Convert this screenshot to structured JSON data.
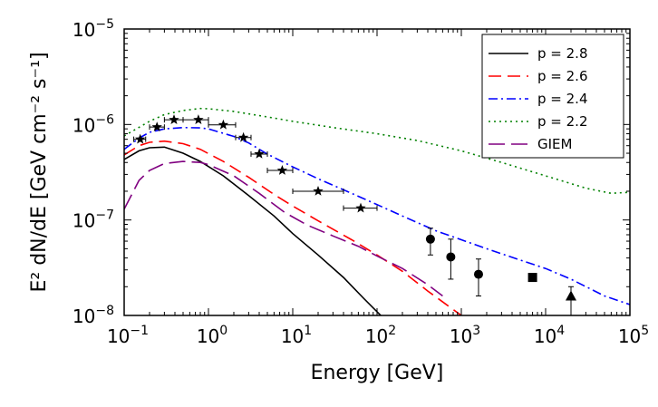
{
  "chart_data": {
    "type": "line",
    "title": "",
    "xlabel": "Energy [GeV]",
    "ylabel_text": "E² dN/dE [GeV cm⁻² s⁻¹]",
    "xscale": "log",
    "yscale": "log",
    "xlim": [
      0.1,
      100000
    ],
    "ylim": [
      1e-08,
      1e-05
    ],
    "x_ticks": [
      {
        "value": 0.1,
        "base": "10",
        "exp": "−1"
      },
      {
        "value": 1,
        "base": "10",
        "exp": "0"
      },
      {
        "value": 10,
        "base": "10",
        "exp": "1"
      },
      {
        "value": 100,
        "base": "10",
        "exp": "2"
      },
      {
        "value": 1000,
        "base": "10",
        "exp": "3"
      },
      {
        "value": 10000,
        "base": "10",
        "exp": "4"
      },
      {
        "value": 100000,
        "base": "10",
        "exp": "5"
      }
    ],
    "y_ticks": [
      {
        "value": 1e-08,
        "base": "10",
        "exp": "−8"
      },
      {
        "value": 1e-07,
        "base": "10",
        "exp": "−7"
      },
      {
        "value": 1e-06,
        "base": "10",
        "exp": "−6"
      },
      {
        "value": 1e-05,
        "base": "10",
        "exp": "−5"
      }
    ],
    "legend_position": "top-right",
    "series": [
      {
        "name": "p = 2.8",
        "color": "#000000",
        "style": "solid",
        "points": [
          [
            0.1,
            4.3e-07
          ],
          [
            0.15,
            5.3e-07
          ],
          [
            0.2,
            5.7e-07
          ],
          [
            0.3,
            5.8e-07
          ],
          [
            0.5,
            5e-07
          ],
          [
            0.8,
            4.1e-07
          ],
          [
            1.5,
            2.9e-07
          ],
          [
            3,
            1.8e-07
          ],
          [
            6,
            1.1e-07
          ],
          [
            10,
            7.2e-08
          ],
          [
            20,
            4.3e-08
          ],
          [
            40,
            2.5e-08
          ],
          [
            70,
            1.5e-08
          ],
          [
            120,
            9.3e-09
          ]
        ]
      },
      {
        "name": "p = 2.6",
        "color": "#ff0000",
        "style": "dashed",
        "points": [
          [
            0.1,
            4.8e-07
          ],
          [
            0.15,
            6e-07
          ],
          [
            0.2,
            6.5e-07
          ],
          [
            0.3,
            6.7e-07
          ],
          [
            0.5,
            6.3e-07
          ],
          [
            0.8,
            5.5e-07
          ],
          [
            1.5,
            4.1e-07
          ],
          [
            3,
            2.8e-07
          ],
          [
            6,
            1.85e-07
          ],
          [
            10,
            1.4e-07
          ],
          [
            20,
            9.8e-08
          ],
          [
            50,
            6.2e-08
          ],
          [
            100,
            4.3e-08
          ],
          [
            200,
            2.9e-08
          ],
          [
            400,
            1.8e-08
          ],
          [
            1000,
            1e-08
          ]
        ]
      },
      {
        "name": "p = 2.4",
        "color": "#0000ff",
        "style": "dashdot",
        "points": [
          [
            0.1,
            5.5e-07
          ],
          [
            0.15,
            7.2e-07
          ],
          [
            0.2,
            8.3e-07
          ],
          [
            0.3,
            9e-07
          ],
          [
            0.5,
            9.3e-07
          ],
          [
            0.8,
            9.2e-07
          ],
          [
            1,
            9e-07
          ],
          [
            2,
            7.5e-07
          ],
          [
            3,
            6.4e-07
          ],
          [
            5,
            4.9e-07
          ],
          [
            10,
            3.6e-07
          ],
          [
            20,
            2.7e-07
          ],
          [
            50,
            1.9e-07
          ],
          [
            100,
            1.45e-07
          ],
          [
            200,
            1.1e-07
          ],
          [
            500,
            7.7e-08
          ],
          [
            1000,
            6.2e-08
          ],
          [
            2000,
            5e-08
          ],
          [
            5000,
            3.8e-08
          ],
          [
            10000,
            3.1e-08
          ],
          [
            20000,
            2.4e-08
          ],
          [
            50000,
            1.6e-08
          ],
          [
            100000,
            1.3e-08
          ]
        ]
      },
      {
        "name": "p = 2.2",
        "color": "#008000",
        "style": "dotted",
        "points": [
          [
            0.1,
            7.6e-07
          ],
          [
            0.2,
            1.08e-06
          ],
          [
            0.3,
            1.27e-06
          ],
          [
            0.5,
            1.4e-06
          ],
          [
            0.8,
            1.47e-06
          ],
          [
            1,
            1.46e-06
          ],
          [
            2,
            1.37e-06
          ],
          [
            5,
            1.2e-06
          ],
          [
            10,
            1.08e-06
          ],
          [
            30,
            9.3e-07
          ],
          [
            100,
            8e-07
          ],
          [
            300,
            6.8e-07
          ],
          [
            1000,
            5.3e-07
          ],
          [
            3000,
            4e-07
          ],
          [
            10000,
            2.9e-07
          ],
          [
            30000,
            2.15e-07
          ],
          [
            60000,
            1.9e-07
          ],
          [
            100000,
            1.95e-07
          ]
        ]
      },
      {
        "name": "GIEM",
        "color": "#800080",
        "style": "longdash",
        "points": [
          [
            0.1,
            1.3e-07
          ],
          [
            0.15,
            2.6e-07
          ],
          [
            0.2,
            3.3e-07
          ],
          [
            0.3,
            3.9e-07
          ],
          [
            0.5,
            4.1e-07
          ],
          [
            0.8,
            4e-07
          ],
          [
            1,
            3.8e-07
          ],
          [
            2,
            2.9e-07
          ],
          [
            4,
            1.9e-07
          ],
          [
            8,
            1.2e-07
          ],
          [
            15,
            8.8e-08
          ],
          [
            30,
            6.8e-08
          ],
          [
            60,
            5.3e-08
          ],
          [
            100,
            4.2e-08
          ],
          [
            200,
            3.1e-08
          ],
          [
            400,
            2.1e-08
          ],
          [
            600,
            1.6e-08
          ]
        ]
      }
    ],
    "data_points": [
      {
        "marker": "star",
        "x": 0.155,
        "y": 7e-07,
        "xerr": [
          0.13,
          0.18
        ]
      },
      {
        "marker": "star",
        "x": 0.245,
        "y": 9.4e-07,
        "xerr": [
          0.2,
          0.3
        ]
      },
      {
        "marker": "star",
        "x": 0.39,
        "y": 1.12e-06,
        "xerr": [
          0.3,
          0.5
        ]
      },
      {
        "marker": "star",
        "x": 0.76,
        "y": 1.12e-06,
        "xerr": [
          0.5,
          1.0
        ]
      },
      {
        "marker": "star",
        "x": 1.5,
        "y": 9.9e-07,
        "xerr": [
          1.0,
          2.1
        ]
      },
      {
        "marker": "star",
        "x": 2.6,
        "y": 7.3e-07,
        "xerr": [
          2.1,
          3.2
        ]
      },
      {
        "marker": "star",
        "x": 4.0,
        "y": 4.9e-07,
        "xerr": [
          3.2,
          5.0
        ]
      },
      {
        "marker": "star",
        "x": 7.5,
        "y": 3.3e-07,
        "xerr": [
          5.0,
          10
        ]
      },
      {
        "marker": "star",
        "x": 20,
        "y": 2e-07,
        "xerr": [
          10,
          40
        ]
      },
      {
        "marker": "star",
        "x": 64,
        "y": 1.33e-07,
        "xerr": [
          40,
          100
        ]
      },
      {
        "marker": "circle",
        "x": 430,
        "y": 6.3e-08,
        "yerr": [
          4.3e-08,
          8.2e-08
        ]
      },
      {
        "marker": "circle",
        "x": 750,
        "y": 4.1e-08,
        "yerr": [
          2.4e-08,
          6.3e-08
        ]
      },
      {
        "marker": "circle",
        "x": 1600,
        "y": 2.7e-08,
        "yerr": [
          1.6e-08,
          3.9e-08
        ]
      },
      {
        "marker": "square",
        "x": 7000,
        "y": 2.5e-08
      },
      {
        "marker": "triangle",
        "x": 20000,
        "y": 1.6e-08,
        "yerr": [
          1e-08,
          2e-08
        ]
      }
    ]
  }
}
